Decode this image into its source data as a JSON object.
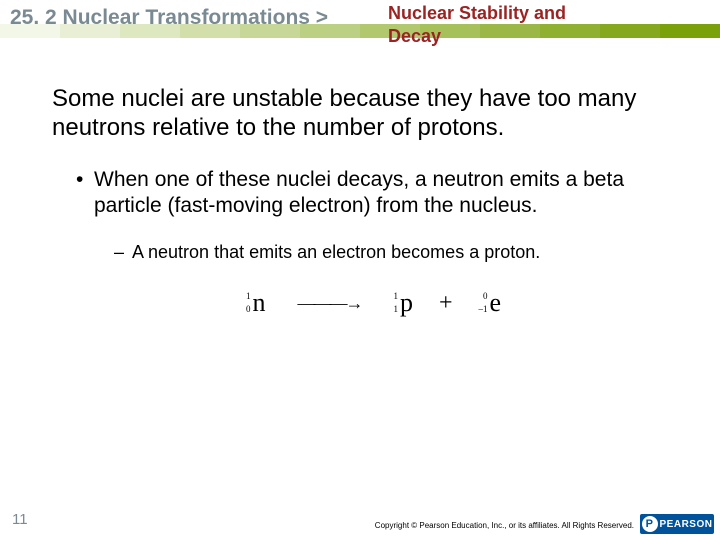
{
  "header": {
    "section_label": "25. 2 Nuclear Transformations >",
    "subtitle_line1": "Nuclear Stability and",
    "subtitle_line2": "Decay",
    "bar_colors": [
      "#f3f7e8",
      "#e8efd4",
      "#dde7c0",
      "#d2dfab",
      "#c7d797",
      "#bcd083",
      "#b1c86e",
      "#a6c05a",
      "#9bb846",
      "#90b032",
      "#85a81e",
      "#7aa00a"
    ],
    "title_color": "#7a8a93",
    "subtitle_color": "#9b2423"
  },
  "content": {
    "main": "Some nuclei are unstable because they have too many neutrons relative to the number of protons.",
    "bullet1": "When one of these nuclei decays, a neutron emits a beta particle (fast-moving electron) from the nucleus.",
    "bullet2": "A neutron that emits an electron becomes a proton."
  },
  "equation": {
    "lhs": {
      "mass": "1",
      "charge": "0",
      "symbol": "n"
    },
    "rhs1": {
      "mass": "1",
      "charge": "1",
      "symbol": "p"
    },
    "rhs2": {
      "mass": "0",
      "charge": "–1",
      "symbol": "e"
    },
    "plus": "+"
  },
  "footer": {
    "page": "11",
    "copyright": "Copyright © Pearson Education, Inc., or its affiliates. All Rights Reserved.",
    "logo_text": "PEARSON"
  }
}
